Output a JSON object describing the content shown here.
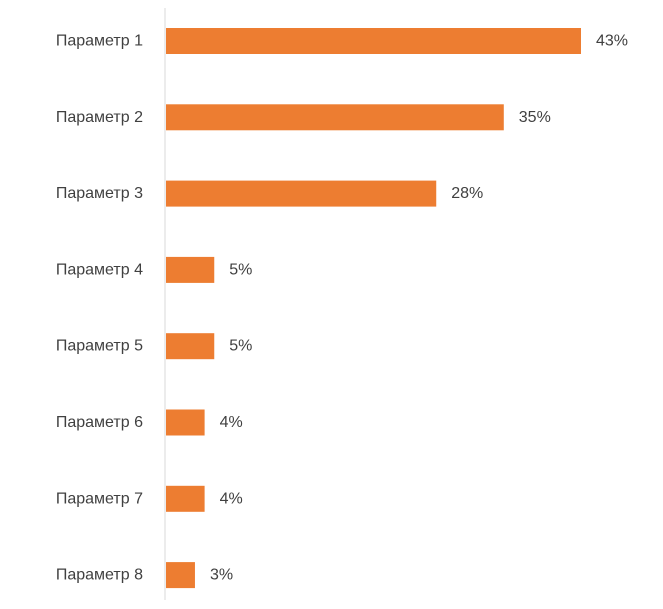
{
  "chart_data": {
    "type": "bar",
    "orientation": "horizontal",
    "categories": [
      "Параметр 1",
      "Параметр 2",
      "Параметр 3",
      "Параметр 4",
      "Параметр 5",
      "Параметр 6",
      "Параметр 7",
      "Параметр 8"
    ],
    "values": [
      43,
      35,
      28,
      5,
      5,
      4,
      4,
      3
    ],
    "value_labels": [
      "43%",
      "35%",
      "28%",
      "5%",
      "5%",
      "4%",
      "4%",
      "3%"
    ],
    "xlim": [
      0,
      43
    ],
    "grid": false,
    "legend": "none",
    "bar_color": "#ED7D31",
    "axis_color": "#D9D9D9",
    "text_color": "#404040"
  }
}
